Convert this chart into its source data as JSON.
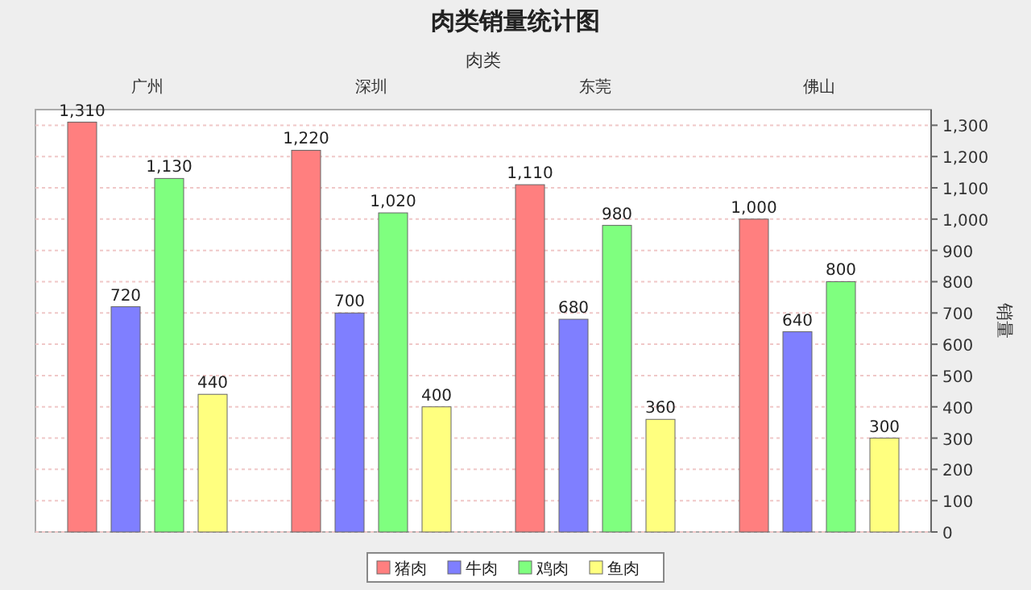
{
  "chart_data": {
    "type": "bar",
    "title": "肉类销量统计图",
    "xlabel": "肉类",
    "ylabel": "销量",
    "categories": [
      "广州",
      "深圳",
      "东莞",
      "佛山"
    ],
    "series": [
      {
        "name": "猪肉",
        "color": "#ff7f7f",
        "values": [
          1310,
          1220,
          1110,
          1000
        ],
        "value_labels": [
          "1,310",
          "1,220",
          "1,110",
          "1,000"
        ]
      },
      {
        "name": "牛肉",
        "color": "#7f7fff",
        "values": [
          720,
          700,
          680,
          640
        ],
        "value_labels": [
          "720",
          "700",
          "680",
          "640"
        ]
      },
      {
        "name": "鸡肉",
        "color": "#7fff7f",
        "values": [
          1130,
          1020,
          980,
          800
        ],
        "value_labels": [
          "1,130",
          "1,020",
          "980",
          "800"
        ]
      },
      {
        "name": "鱼肉",
        "color": "#ffff7f",
        "values": [
          440,
          400,
          360,
          300
        ],
        "value_labels": [
          "440",
          "400",
          "360",
          "300"
        ]
      }
    ],
    "ylim": [
      0,
      1350
    ],
    "yticks": [
      0,
      100,
      200,
      300,
      400,
      500,
      600,
      700,
      800,
      900,
      {
        "value": 1000,
        "label": "1,000"
      },
      {
        "value": 1100,
        "label": "1,100"
      },
      {
        "value": 1200,
        "label": "1,200"
      },
      {
        "value": 1300,
        "label": "1,300"
      }
    ],
    "grid": "y",
    "legend": "bottom"
  }
}
